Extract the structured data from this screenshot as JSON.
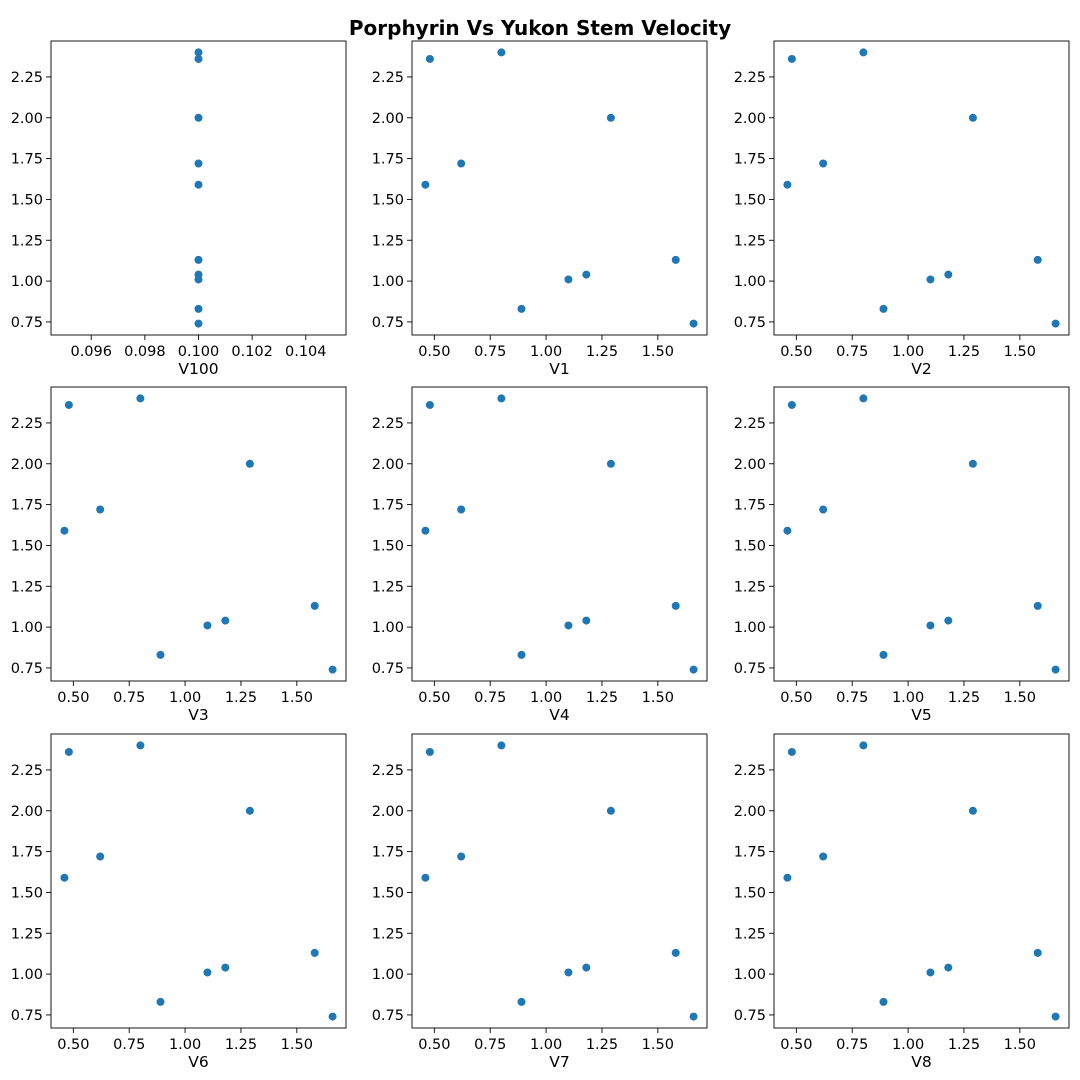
{
  "chart_data": {
    "type": "scatter",
    "title": "Porphyrin Vs Yukon Stem Velocity",
    "grid": false,
    "marker_color": "#1f77b4",
    "y": [
      2.4,
      2.36,
      2.0,
      1.72,
      1.59,
      1.13,
      1.04,
      1.01,
      0.83,
      0.74
    ],
    "ylim": [
      0.67,
      2.47
    ],
    "yticks": [
      "0.75",
      "1.00",
      "1.25",
      "1.50",
      "1.75",
      "2.00",
      "2.25"
    ],
    "subplots": [
      {
        "xlabel": "V100",
        "x": [
          0.1,
          0.1,
          0.1,
          0.1,
          0.1,
          0.1,
          0.1,
          0.1,
          0.1,
          0.1
        ],
        "xlim": [
          0.0945,
          0.1055
        ],
        "xticks": [
          "0.096",
          "0.098",
          "0.100",
          "0.102",
          "0.104"
        ]
      },
      {
        "xlabel": "V1",
        "x": [
          0.8,
          0.48,
          1.29,
          0.62,
          0.46,
          1.58,
          1.18,
          1.1,
          0.89,
          1.66
        ],
        "xlim": [
          0.4,
          1.72
        ],
        "xticks": [
          "0.50",
          "0.75",
          "1.00",
          "1.25",
          "1.50"
        ]
      },
      {
        "xlabel": "V2",
        "x": [
          0.8,
          0.48,
          1.29,
          0.62,
          0.46,
          1.58,
          1.18,
          1.1,
          0.89,
          1.66
        ],
        "xlim": [
          0.4,
          1.72
        ],
        "xticks": [
          "0.50",
          "0.75",
          "1.00",
          "1.25",
          "1.50"
        ]
      },
      {
        "xlabel": "V3",
        "x": [
          0.8,
          0.48,
          1.29,
          0.62,
          0.46,
          1.58,
          1.18,
          1.1,
          0.89,
          1.66
        ],
        "xlim": [
          0.4,
          1.72
        ],
        "xticks": [
          "0.50",
          "0.75",
          "1.00",
          "1.25",
          "1.50"
        ]
      },
      {
        "xlabel": "V4",
        "x": [
          0.8,
          0.48,
          1.29,
          0.62,
          0.46,
          1.58,
          1.18,
          1.1,
          0.89,
          1.66
        ],
        "xlim": [
          0.4,
          1.72
        ],
        "xticks": [
          "0.50",
          "0.75",
          "1.00",
          "1.25",
          "1.50"
        ]
      },
      {
        "xlabel": "V5",
        "x": [
          0.8,
          0.48,
          1.29,
          0.62,
          0.46,
          1.58,
          1.18,
          1.1,
          0.89,
          1.66
        ],
        "xlim": [
          0.4,
          1.72
        ],
        "xticks": [
          "0.50",
          "0.75",
          "1.00",
          "1.25",
          "1.50"
        ]
      },
      {
        "xlabel": "V6",
        "x": [
          0.8,
          0.48,
          1.29,
          0.62,
          0.46,
          1.58,
          1.18,
          1.1,
          0.89,
          1.66
        ],
        "xlim": [
          0.4,
          1.72
        ],
        "xticks": [
          "0.50",
          "0.75",
          "1.00",
          "1.25",
          "1.50"
        ]
      },
      {
        "xlabel": "V7",
        "x": [
          0.8,
          0.48,
          1.29,
          0.62,
          0.46,
          1.58,
          1.18,
          1.1,
          0.89,
          1.66
        ],
        "xlim": [
          0.4,
          1.72
        ],
        "xticks": [
          "0.50",
          "0.75",
          "1.00",
          "1.25",
          "1.50"
        ]
      },
      {
        "xlabel": "V8",
        "x": [
          0.8,
          0.48,
          1.29,
          0.62,
          0.46,
          1.58,
          1.18,
          1.1,
          0.89,
          1.66
        ],
        "xlim": [
          0.4,
          1.72
        ],
        "xticks": [
          "0.50",
          "0.75",
          "1.00",
          "1.25",
          "1.50"
        ]
      }
    ]
  }
}
